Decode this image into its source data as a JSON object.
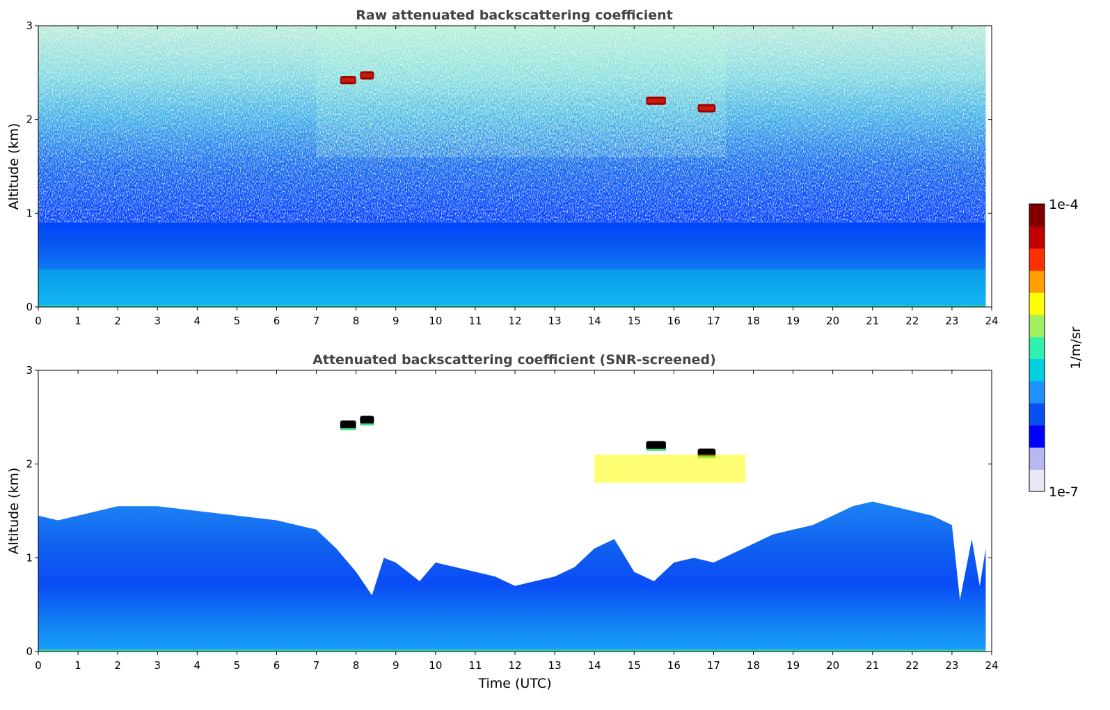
{
  "figure": {
    "xlabel": "Time (UTC)",
    "colorbar": {
      "label": "1/m/sr",
      "min_label": "1e-7",
      "max_label": "1e-4",
      "scale": "log",
      "vmin": 1e-07,
      "vmax": 0.0001,
      "colormap": "jet",
      "colors": [
        "#e8e8f4",
        "#b8b8f0",
        "#0000ff",
        "#0a50f0",
        "#1e90ff",
        "#00d0e0",
        "#30f0b0",
        "#a0f060",
        "#ffff00",
        "#ffa000",
        "#ff3000",
        "#c00000",
        "#800000"
      ]
    }
  },
  "chart_data": [
    {
      "type": "heatmap",
      "title": "Raw attenuated backscattering coefficient",
      "xlabel": "",
      "ylabel": "Altitude (km)",
      "xlim": [
        0,
        24
      ],
      "ylim": [
        0,
        3
      ],
      "x_ticks": [
        "0",
        "1",
        "2",
        "3",
        "4",
        "5",
        "6",
        "7",
        "8",
        "9",
        "10",
        "11",
        "12",
        "13",
        "14",
        "15",
        "16",
        "17",
        "18",
        "19",
        "20",
        "21",
        "22",
        "23",
        "24"
      ],
      "y_ticks": [
        "0",
        "1",
        "2",
        "3"
      ],
      "grid": false,
      "features": [
        {
          "kind": "aerosol_layer",
          "x_range": [
            0,
            23.85
          ],
          "y_top": 0.4,
          "value": 2e-06
        },
        {
          "kind": "noisy_background",
          "x_range": [
            0,
            23.85
          ],
          "y_range": [
            0.4,
            3.0
          ]
        },
        {
          "kind": "cloud",
          "x_range": [
            7.6,
            8.0
          ],
          "y": 2.42,
          "value": 0.0001
        },
        {
          "kind": "cloud",
          "x_range": [
            8.1,
            8.45
          ],
          "y": 2.47,
          "value": 0.0001
        },
        {
          "kind": "cloud",
          "x_range": [
            15.3,
            15.8
          ],
          "y": 2.2,
          "value": 0.0001
        },
        {
          "kind": "cloud",
          "x_range": [
            16.6,
            17.05
          ],
          "y": 2.12,
          "value": 0.0001
        }
      ]
    },
    {
      "type": "heatmap",
      "title": "Attenuated backscattering coefficient (SNR-screened)",
      "xlabel": "Time (UTC)",
      "ylabel": "Altitude (km)",
      "xlim": [
        0,
        24
      ],
      "ylim": [
        0,
        3
      ],
      "x_ticks": [
        "0",
        "1",
        "2",
        "3",
        "4",
        "5",
        "6",
        "7",
        "8",
        "9",
        "10",
        "11",
        "12",
        "13",
        "14",
        "15",
        "16",
        "17",
        "18",
        "19",
        "20",
        "21",
        "22",
        "23",
        "24"
      ],
      "y_ticks": [
        "0",
        "1",
        "2",
        "3"
      ],
      "grid": false,
      "boundary_layer_top_km": {
        "x": [
          0,
          0.5,
          1,
          2,
          3,
          4,
          5,
          6,
          7,
          7.5,
          8,
          8.4,
          8.7,
          9,
          9.6,
          10,
          10.5,
          11,
          11.5,
          12,
          12.5,
          13,
          13.5,
          14,
          14.5,
          15,
          15.5,
          16,
          16.5,
          17,
          17.5,
          18,
          18.5,
          19,
          19.5,
          20,
          20.5,
          21,
          21.5,
          22,
          22.5,
          23,
          23.2,
          23.5,
          23.7,
          23.85
        ],
        "top": [
          1.45,
          1.4,
          1.45,
          1.55,
          1.55,
          1.5,
          1.45,
          1.4,
          1.3,
          1.1,
          0.85,
          0.6,
          1.0,
          0.95,
          0.75,
          0.95,
          0.9,
          0.85,
          0.8,
          0.7,
          0.75,
          0.8,
          0.9,
          1.1,
          1.2,
          0.85,
          0.75,
          0.95,
          1.0,
          0.95,
          1.05,
          1.15,
          1.25,
          1.3,
          1.35,
          1.45,
          1.55,
          1.6,
          1.55,
          1.5,
          1.45,
          1.35,
          0.55,
          1.2,
          0.7,
          1.1
        ]
      },
      "features": [
        {
          "kind": "cloud",
          "x_range": [
            7.6,
            8.0
          ],
          "y": 2.42,
          "value": 0.0001
        },
        {
          "kind": "cloud",
          "x_range": [
            8.1,
            8.45
          ],
          "y": 2.47,
          "value": 0.0001
        },
        {
          "kind": "cloud",
          "x_range": [
            15.3,
            15.8
          ],
          "y": 2.2,
          "value": 0.0001
        },
        {
          "kind": "cloud",
          "x_range": [
            16.6,
            17.05
          ],
          "y": 2.12,
          "value": 0.0001
        },
        {
          "kind": "aerosol_patch",
          "x_range": [
            14.0,
            17.8
          ],
          "y_range": [
            1.8,
            2.1
          ],
          "value": 8e-06
        }
      ]
    }
  ]
}
